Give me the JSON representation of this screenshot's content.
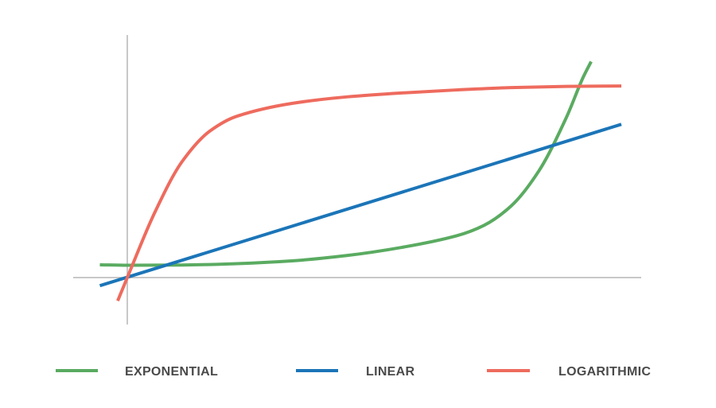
{
  "chart_data": {
    "type": "line",
    "title": "",
    "xlabel": "",
    "ylabel": "",
    "xlim": [
      -1,
      18
    ],
    "ylim": [
      -1.8,
      9.3
    ],
    "grid": false,
    "axes": "cross-through-origin",
    "legend_position": "bottom",
    "series": [
      {
        "name": "EXPONENTIAL",
        "color": "#5aab61",
        "form": "exponential",
        "x": [
          -1,
          0,
          2,
          4,
          6,
          8,
          10,
          12,
          13,
          14,
          15,
          16,
          16.6,
          16.9
        ],
        "y": [
          0.55,
          0.53,
          0.54,
          0.6,
          0.72,
          0.95,
          1.3,
          1.8,
          2.25,
          3.1,
          4.6,
          6.9,
          8.6,
          9.3
        ]
      },
      {
        "name": "LINEAR",
        "color": "#1b75b8",
        "form": "linear",
        "x": [
          -1,
          18
        ],
        "y": [
          -0.35,
          6.6
        ]
      },
      {
        "name": "LOGARITHMIC",
        "color": "#ee6b5e",
        "form": "logarithmic",
        "x": [
          -0.35,
          0,
          1,
          2,
          3,
          4,
          6,
          8,
          10,
          12,
          14,
          16,
          18
        ],
        "y": [
          -1.0,
          0.0,
          2.8,
          5.0,
          6.3,
          6.95,
          7.5,
          7.78,
          7.95,
          8.08,
          8.18,
          8.23,
          8.25
        ]
      }
    ]
  }
}
